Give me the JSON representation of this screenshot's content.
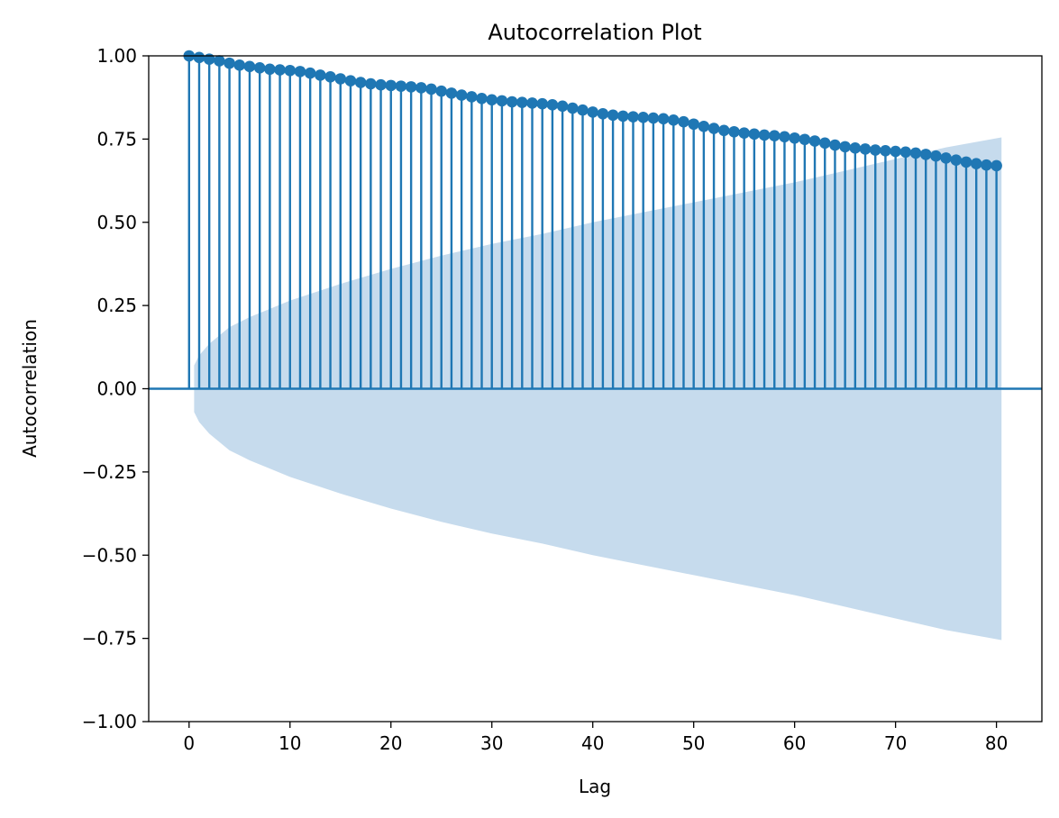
{
  "chart_data": {
    "type": "stem",
    "title": "Autocorrelation Plot",
    "xlabel": "Lag",
    "ylabel": "Autocorrelation",
    "xlim": [
      -4,
      84.5
    ],
    "ylim": [
      -1.0,
      1.0
    ],
    "x_ticks": [
      0,
      10,
      20,
      30,
      40,
      50,
      60,
      70,
      80
    ],
    "y_ticks": [
      -1.0,
      -0.75,
      -0.5,
      -0.25,
      0.0,
      0.25,
      0.5,
      0.75,
      1.0
    ],
    "x_tick_labels": [
      "0",
      "10",
      "20",
      "30",
      "40",
      "50",
      "60",
      "70",
      "80"
    ],
    "y_tick_labels": [
      "−1.00",
      "−0.75",
      "−0.50",
      "−0.25",
      "0.00",
      "0.25",
      "0.50",
      "0.75",
      "1.00"
    ],
    "grid": false,
    "colors": {
      "series": "#1f77b4",
      "confidence_band": "#c6dbed"
    },
    "lags": [
      0,
      1,
      2,
      3,
      4,
      5,
      6,
      7,
      8,
      9,
      10,
      11,
      12,
      13,
      14,
      15,
      16,
      17,
      18,
      19,
      20,
      21,
      22,
      23,
      24,
      25,
      26,
      27,
      28,
      29,
      30,
      31,
      32,
      33,
      34,
      35,
      36,
      37,
      38,
      39,
      40,
      41,
      42,
      43,
      44,
      45,
      46,
      47,
      48,
      49,
      50,
      51,
      52,
      53,
      54,
      55,
      56,
      57,
      58,
      59,
      60,
      61,
      62,
      63,
      64,
      65,
      66,
      67,
      68,
      69,
      70,
      71,
      72,
      73,
      74,
      75,
      76,
      77,
      78,
      79,
      80
    ],
    "values": [
      1.0,
      0.995,
      0.99,
      0.985,
      0.978,
      0.972,
      0.968,
      0.964,
      0.96,
      0.958,
      0.956,
      0.953,
      0.948,
      0.942,
      0.937,
      0.931,
      0.925,
      0.92,
      0.916,
      0.913,
      0.911,
      0.909,
      0.907,
      0.904,
      0.9,
      0.894,
      0.888,
      0.882,
      0.877,
      0.872,
      0.868,
      0.865,
      0.862,
      0.86,
      0.858,
      0.856,
      0.853,
      0.849,
      0.843,
      0.837,
      0.831,
      0.826,
      0.822,
      0.819,
      0.817,
      0.815,
      0.813,
      0.811,
      0.807,
      0.802,
      0.795,
      0.788,
      0.782,
      0.776,
      0.772,
      0.768,
      0.765,
      0.762,
      0.76,
      0.757,
      0.753,
      0.749,
      0.744,
      0.738,
      0.732,
      0.727,
      0.723,
      0.72,
      0.717,
      0.715,
      0.713,
      0.711,
      0.708,
      0.704,
      0.699,
      0.693,
      0.687,
      0.681,
      0.676,
      0.672,
      0.67
    ],
    "confidence_band": {
      "x": [
        0.5,
        1,
        2,
        3,
        4,
        5,
        6,
        8,
        10,
        12,
        15,
        20,
        25,
        30,
        35,
        40,
        45,
        50,
        55,
        60,
        65,
        70,
        75,
        80.5
      ],
      "upper": [
        0.07,
        0.1,
        0.135,
        0.16,
        0.185,
        0.2,
        0.215,
        0.24,
        0.265,
        0.285,
        0.315,
        0.36,
        0.4,
        0.435,
        0.465,
        0.5,
        0.53,
        0.56,
        0.59,
        0.62,
        0.655,
        0.69,
        0.725,
        0.755
      ],
      "lower": [
        -0.07,
        -0.1,
        -0.135,
        -0.16,
        -0.185,
        -0.2,
        -0.215,
        -0.24,
        -0.265,
        -0.285,
        -0.315,
        -0.36,
        -0.4,
        -0.435,
        -0.465,
        -0.5,
        -0.53,
        -0.56,
        -0.59,
        -0.62,
        -0.655,
        -0.69,
        -0.725,
        -0.755
      ]
    }
  }
}
